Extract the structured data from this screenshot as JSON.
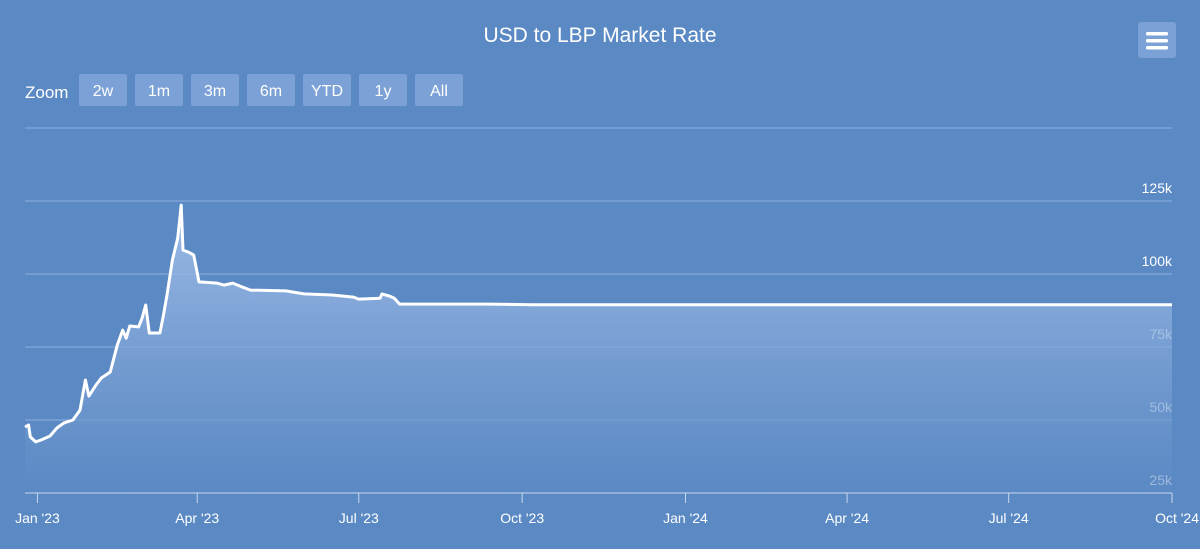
{
  "chart_data": {
    "type": "area",
    "title": "USD to LBP Market Rate",
    "range_selector": {
      "label": "Zoom",
      "buttons": [
        "2w",
        "1m",
        "3m",
        "6m",
        "YTD",
        "1y",
        "All"
      ]
    },
    "x": [
      "2022-12-25",
      "2022-12-27",
      "2022-12-28",
      "2022-12-31",
      "2023-01-03",
      "2023-01-08",
      "2023-01-12",
      "2023-01-16",
      "2023-01-21",
      "2023-01-25",
      "2023-01-28",
      "2023-01-30",
      "2023-02-03",
      "2023-02-06",
      "2023-02-11",
      "2023-02-15",
      "2023-02-18",
      "2023-02-20",
      "2023-02-22",
      "2023-02-27",
      "2023-03-01",
      "2023-03-03",
      "2023-03-05",
      "2023-03-11",
      "2023-03-13",
      "2023-03-15",
      "2023-03-18",
      "2023-03-21",
      "2023-03-23",
      "2023-03-24",
      "2023-03-27",
      "2023-03-30",
      "2023-04-02",
      "2023-04-12",
      "2023-04-16",
      "2023-04-21",
      "2023-04-26",
      "2023-05-01",
      "2023-05-21",
      "2023-05-31",
      "2023-06-16",
      "2023-06-28",
      "2023-07-01",
      "2023-07-13",
      "2023-07-14",
      "2023-07-18",
      "2023-07-21",
      "2023-07-24",
      "2023-08-18",
      "2023-09-12",
      "2023-10-07",
      "2024-10-01"
    ],
    "values": [
      47600,
      48300,
      44200,
      42500,
      43150,
      44500,
      47300,
      49000,
      50000,
      53400,
      63700,
      58200,
      62000,
      64400,
      66400,
      75700,
      80800,
      78000,
      82200,
      81900,
      85000,
      89400,
      79800,
      79800,
      86000,
      92800,
      104800,
      112300,
      123600,
      108200,
      107500,
      106500,
      97300,
      96900,
      96200,
      96900,
      95600,
      94500,
      94200,
      93200,
      92800,
      92100,
      91400,
      91700,
      93200,
      92500,
      91700,
      89700,
      89700,
      89700,
      89500,
      89500
    ],
    "color": "#ffffff",
    "xlim": [
      "2022-12-25",
      "2024-10-01"
    ],
    "xticks": [
      {
        "value": "2023-01-01",
        "label": "Jan '23"
      },
      {
        "value": "2023-04-01",
        "label": "Apr '23"
      },
      {
        "value": "2023-07-01",
        "label": "Jul '23"
      },
      {
        "value": "2023-10-01",
        "label": "Oct '23"
      },
      {
        "value": "2024-01-01",
        "label": "Jan '24"
      },
      {
        "value": "2024-04-01",
        "label": "Apr '24"
      },
      {
        "value": "2024-07-01",
        "label": "Jul '24"
      },
      {
        "value": "2024-10-01",
        "label": "Oct '24"
      }
    ],
    "ylim": [
      25000,
      150000
    ],
    "yticks": [
      {
        "value": 25000,
        "label": "25k"
      },
      {
        "value": 50000,
        "label": "50k"
      },
      {
        "value": 75000,
        "label": "75k"
      },
      {
        "value": 100000,
        "label": "100k"
      },
      {
        "value": 125000,
        "label": "125k"
      }
    ],
    "grid": true
  }
}
